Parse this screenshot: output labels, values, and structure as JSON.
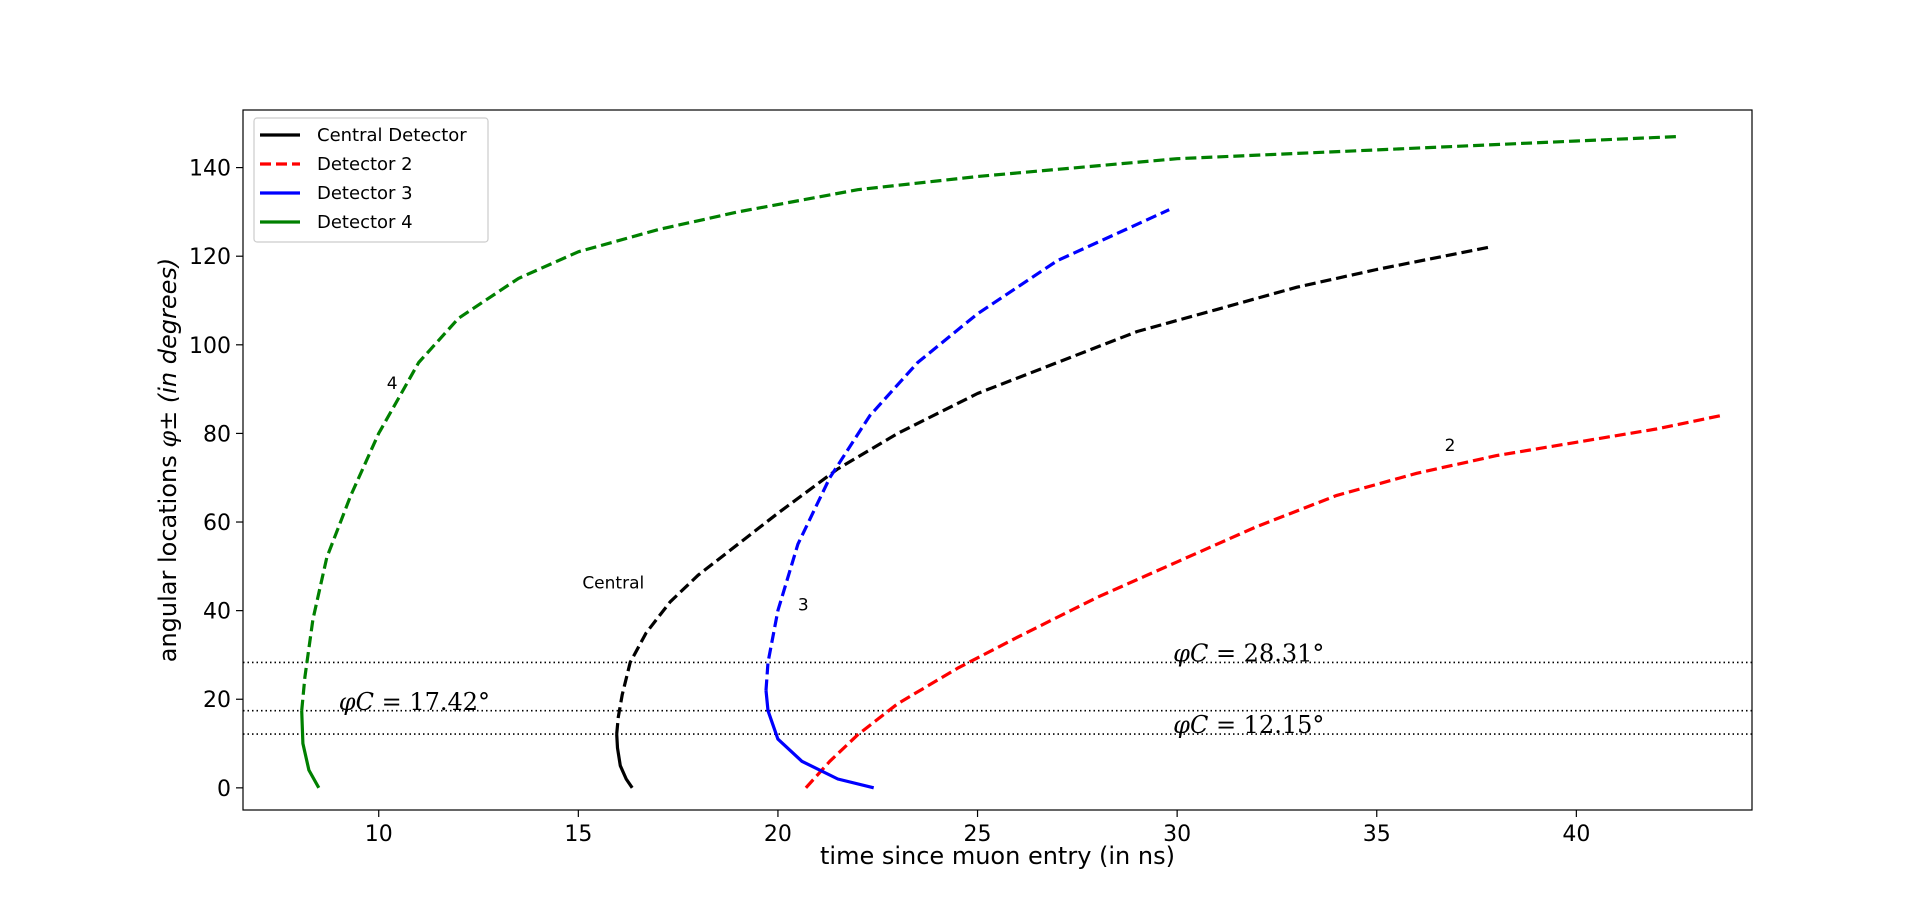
{
  "chart_data": {
    "type": "line",
    "xlabel": "time since muon entry (in ns)",
    "ylabel_prefix": "angular locations ",
    "ylabel_symbol": "φ±",
    "ylabel_suffix": " (in degrees)",
    "xlim": [
      6.6,
      44.4
    ],
    "ylim": [
      -5,
      153
    ],
    "xticks": [
      10,
      15,
      20,
      25,
      30,
      35,
      40
    ],
    "yticks": [
      0,
      20,
      40,
      60,
      80,
      100,
      120,
      140
    ],
    "grid": false,
    "legend": {
      "placement": "upper-left",
      "entries": [
        {
          "label": "Central Detector",
          "color": "#000000",
          "style": "solid"
        },
        {
          "label": "Detector 2",
          "color": "#ff0000",
          "style": "dashed"
        },
        {
          "label": "Detector 3",
          "color": "#0000ff",
          "style": "solid"
        },
        {
          "label": "Detector 4",
          "color": "#008000",
          "style": "solid"
        }
      ]
    },
    "series": [
      {
        "name": "Central Detector",
        "color": "#000000",
        "solid": [
          [
            16.35,
            0
          ],
          [
            16.2,
            2
          ],
          [
            16.05,
            5
          ],
          [
            15.98,
            9
          ],
          [
            15.96,
            12.15
          ]
        ],
        "dashed": [
          [
            15.96,
            12.15
          ],
          [
            16.0,
            16
          ],
          [
            16.1,
            21
          ],
          [
            16.3,
            28.31
          ],
          [
            16.7,
            35
          ],
          [
            17.3,
            42
          ],
          [
            18.0,
            48
          ],
          [
            19.0,
            55
          ],
          [
            20.0,
            62
          ],
          [
            21.5,
            72
          ],
          [
            23.0,
            80
          ],
          [
            25.0,
            89
          ],
          [
            27.0,
            96
          ],
          [
            29.0,
            103
          ],
          [
            31.0,
            108
          ],
          [
            33.0,
            113
          ],
          [
            35.0,
            117
          ],
          [
            37.8,
            122
          ]
        ]
      },
      {
        "name": "Detector 2",
        "color": "#ff0000",
        "solid": [],
        "dashed": [
          [
            20.7,
            0
          ],
          [
            21.3,
            6
          ],
          [
            22.0,
            12
          ],
          [
            23.0,
            19
          ],
          [
            24.5,
            27
          ],
          [
            26.0,
            34
          ],
          [
            28.0,
            43
          ],
          [
            30.0,
            51
          ],
          [
            32.0,
            59
          ],
          [
            34.0,
            66
          ],
          [
            36.0,
            71
          ],
          [
            38.0,
            75
          ],
          [
            40.0,
            78
          ],
          [
            42.0,
            81
          ],
          [
            43.6,
            84
          ]
        ]
      },
      {
        "name": "Detector 3",
        "color": "#0000ff",
        "solid": [
          [
            22.4,
            0
          ],
          [
            21.5,
            2
          ],
          [
            20.6,
            6
          ],
          [
            20.0,
            11
          ],
          [
            19.75,
            17.42
          ],
          [
            19.7,
            22
          ]
        ],
        "dashed": [
          [
            19.7,
            22
          ],
          [
            19.75,
            28.31
          ],
          [
            20.0,
            40
          ],
          [
            20.5,
            55
          ],
          [
            21.3,
            70
          ],
          [
            22.3,
            84
          ],
          [
            23.5,
            96
          ],
          [
            25.0,
            107
          ],
          [
            27.0,
            119
          ],
          [
            29.8,
            130.5
          ]
        ]
      },
      {
        "name": "Detector 4",
        "color": "#008000",
        "solid": [
          [
            8.5,
            0
          ],
          [
            8.25,
            4
          ],
          [
            8.1,
            10
          ],
          [
            8.07,
            17.42
          ]
        ],
        "dashed": [
          [
            8.07,
            17.42
          ],
          [
            8.15,
            25
          ],
          [
            8.35,
            38
          ],
          [
            8.7,
            52
          ],
          [
            9.3,
            66
          ],
          [
            10.0,
            80
          ],
          [
            10.5,
            88
          ],
          [
            11.0,
            96
          ],
          [
            12.0,
            106
          ],
          [
            13.5,
            115
          ],
          [
            15.0,
            121
          ],
          [
            17.0,
            126
          ],
          [
            19.0,
            130
          ],
          [
            22.0,
            135
          ],
          [
            25.0,
            138
          ],
          [
            30.0,
            142
          ],
          [
            35.0,
            144
          ],
          [
            40.0,
            146
          ],
          [
            42.5,
            147
          ]
        ]
      }
    ],
    "reference_lines": [
      {
        "y": 28.31,
        "label_symbol": "φC",
        "label_value": " = 28.31°",
        "label_x": 29.9,
        "label_y": 28.5
      },
      {
        "y": 17.42,
        "label_symbol": "φC",
        "label_value": " = 17.42°",
        "label_x": 9.0,
        "label_y": 17.6
      },
      {
        "y": 12.15,
        "label_symbol": "φC",
        "label_value": " = 12.15°",
        "label_x": 29.9,
        "label_y": 12.4
      }
    ],
    "curve_labels": [
      {
        "text": "4",
        "x": 10.2,
        "y": 90
      },
      {
        "text": "Central",
        "x": 15.1,
        "y": 45
      },
      {
        "text": "3",
        "x": 20.5,
        "y": 40
      },
      {
        "text": "2",
        "x": 36.7,
        "y": 76
      }
    ]
  }
}
